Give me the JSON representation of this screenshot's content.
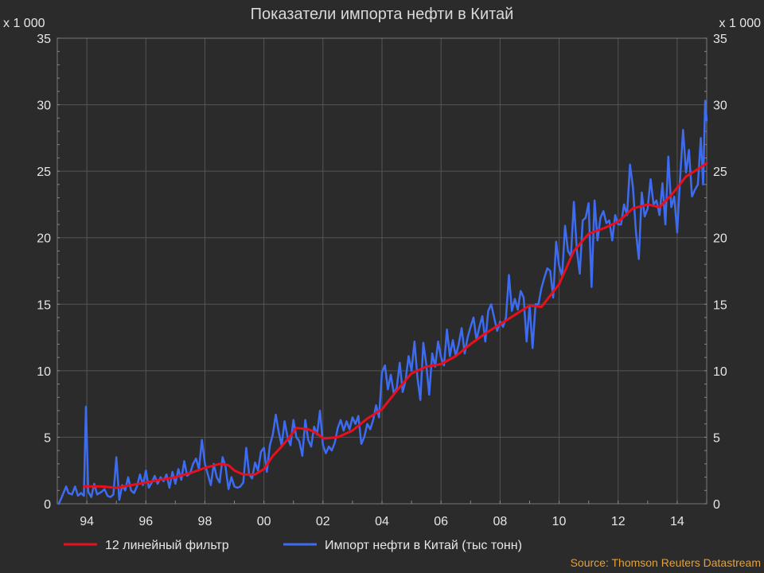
{
  "chart_data": {
    "type": "line",
    "title": "Показатели импорта нефти в Китай",
    "y_scale_label_left": "x 1 000",
    "y_scale_label_right": "x 1 000",
    "source": "Source: Thomson Reuters Datastream",
    "ylim": [
      0,
      35
    ],
    "xlim": [
      1993.0,
      2015.0
    ],
    "y_ticks": [
      0,
      5,
      10,
      15,
      20,
      25,
      30,
      35
    ],
    "x_tick_values": [
      1994,
      1996,
      1998,
      2000,
      2002,
      2004,
      2006,
      2008,
      2010,
      2012,
      2014
    ],
    "x_tick_labels": [
      "94",
      "96",
      "98",
      "00",
      "02",
      "04",
      "06",
      "08",
      "10",
      "12",
      "14"
    ],
    "grid": true,
    "legend_position": "bottom",
    "colors": {
      "background": "#2b2b2b",
      "grid": "#555555",
      "text": "#e6e6e6",
      "source": "#e8a030"
    },
    "series": [
      {
        "name": "12 линейный фильтр",
        "color": "#e8101e",
        "points": [
          [
            1993.9,
            1.3
          ],
          [
            1994.5,
            1.3
          ],
          [
            1995.0,
            1.2
          ],
          [
            1995.5,
            1.4
          ],
          [
            1996.0,
            1.6
          ],
          [
            1996.5,
            1.8
          ],
          [
            1997.0,
            2.0
          ],
          [
            1997.5,
            2.3
          ],
          [
            1998.0,
            2.7
          ],
          [
            1998.5,
            3.0
          ],
          [
            1998.8,
            2.9
          ],
          [
            1999.0,
            2.5
          ],
          [
            1999.3,
            2.2
          ],
          [
            1999.7,
            2.2
          ],
          [
            2000.0,
            2.6
          ],
          [
            2000.3,
            3.6
          ],
          [
            2000.6,
            4.3
          ],
          [
            2000.9,
            5.1
          ],
          [
            2001.1,
            5.7
          ],
          [
            2001.5,
            5.6
          ],
          [
            2001.8,
            5.3
          ],
          [
            2002.0,
            4.9
          ],
          [
            2002.5,
            5.0
          ],
          [
            2003.0,
            5.5
          ],
          [
            2003.5,
            6.4
          ],
          [
            2004.0,
            7.1
          ],
          [
            2004.5,
            8.5
          ],
          [
            2005.0,
            9.8
          ],
          [
            2005.5,
            10.3
          ],
          [
            2006.0,
            10.5
          ],
          [
            2006.5,
            11.1
          ],
          [
            2007.0,
            12.0
          ],
          [
            2007.5,
            12.8
          ],
          [
            2008.0,
            13.5
          ],
          [
            2008.5,
            14.2
          ],
          [
            2009.0,
            14.9
          ],
          [
            2009.4,
            14.8
          ],
          [
            2010.0,
            16.5
          ],
          [
            2010.5,
            19.0
          ],
          [
            2011.0,
            20.3
          ],
          [
            2011.5,
            20.7
          ],
          [
            2012.0,
            21.2
          ],
          [
            2012.5,
            22.2
          ],
          [
            2013.0,
            22.5
          ],
          [
            2013.4,
            22.3
          ],
          [
            2013.8,
            23.2
          ],
          [
            2014.3,
            24.6
          ],
          [
            2014.8,
            25.3
          ],
          [
            2015.0,
            25.6
          ]
        ]
      },
      {
        "name": "Импорт нефти в Китай (тыс тонн)",
        "color": "#3d6cf0",
        "points": [
          [
            1993.05,
            0.0
          ],
          [
            1993.15,
            0.5
          ],
          [
            1993.3,
            1.3
          ],
          [
            1993.38,
            0.8
          ],
          [
            1993.5,
            0.7
          ],
          [
            1993.6,
            1.3
          ],
          [
            1993.7,
            0.6
          ],
          [
            1993.8,
            0.8
          ],
          [
            1993.9,
            0.6
          ],
          [
            1993.97,
            7.3
          ],
          [
            1994.05,
            0.9
          ],
          [
            1994.15,
            0.5
          ],
          [
            1994.25,
            1.5
          ],
          [
            1994.35,
            0.7
          ],
          [
            1994.5,
            0.9
          ],
          [
            1994.6,
            1.1
          ],
          [
            1994.7,
            0.6
          ],
          [
            1994.8,
            0.5
          ],
          [
            1994.9,
            0.7
          ],
          [
            1995.0,
            3.5
          ],
          [
            1995.1,
            0.3
          ],
          [
            1995.2,
            1.4
          ],
          [
            1995.3,
            1.0
          ],
          [
            1995.4,
            2.0
          ],
          [
            1995.5,
            1.0
          ],
          [
            1995.6,
            0.8
          ],
          [
            1995.7,
            1.3
          ],
          [
            1995.8,
            2.2
          ],
          [
            1995.9,
            1.4
          ],
          [
            1996.0,
            2.5
          ],
          [
            1996.1,
            1.2
          ],
          [
            1996.2,
            1.6
          ],
          [
            1996.3,
            2.1
          ],
          [
            1996.4,
            1.5
          ],
          [
            1996.5,
            2.0
          ],
          [
            1996.6,
            1.7
          ],
          [
            1996.7,
            2.2
          ],
          [
            1996.8,
            1.2
          ],
          [
            1996.9,
            2.4
          ],
          [
            1997.0,
            1.5
          ],
          [
            1997.1,
            2.6
          ],
          [
            1997.2,
            1.8
          ],
          [
            1997.3,
            3.2
          ],
          [
            1997.4,
            2.1
          ],
          [
            1997.5,
            2.3
          ],
          [
            1997.6,
            3.0
          ],
          [
            1997.7,
            3.4
          ],
          [
            1997.8,
            2.6
          ],
          [
            1997.9,
            4.8
          ],
          [
            1998.0,
            3.0
          ],
          [
            1998.1,
            2.2
          ],
          [
            1998.2,
            1.4
          ],
          [
            1998.3,
            3.0
          ],
          [
            1998.4,
            2.0
          ],
          [
            1998.5,
            1.6
          ],
          [
            1998.6,
            3.5
          ],
          [
            1998.7,
            2.8
          ],
          [
            1998.8,
            1.1
          ],
          [
            1998.9,
            2.0
          ],
          [
            1999.0,
            1.3
          ],
          [
            1999.1,
            1.2
          ],
          [
            1999.2,
            1.3
          ],
          [
            1999.3,
            1.6
          ],
          [
            1999.4,
            4.2
          ],
          [
            1999.5,
            2.2
          ],
          [
            1999.6,
            1.9
          ],
          [
            1999.7,
            3.1
          ],
          [
            1999.8,
            2.5
          ],
          [
            1999.9,
            3.9
          ],
          [
            2000.0,
            4.2
          ],
          [
            2000.1,
            2.4
          ],
          [
            2000.2,
            4.4
          ],
          [
            2000.3,
            5.2
          ],
          [
            2000.4,
            6.7
          ],
          [
            2000.5,
            5.4
          ],
          [
            2000.6,
            4.4
          ],
          [
            2000.7,
            6.2
          ],
          [
            2000.8,
            5.0
          ],
          [
            2000.9,
            4.4
          ],
          [
            2001.0,
            6.3
          ],
          [
            2001.1,
            5.0
          ],
          [
            2001.2,
            4.7
          ],
          [
            2001.3,
            3.6
          ],
          [
            2001.4,
            6.3
          ],
          [
            2001.5,
            4.8
          ],
          [
            2001.6,
            4.3
          ],
          [
            2001.7,
            5.8
          ],
          [
            2001.8,
            5.2
          ],
          [
            2001.9,
            7.0
          ],
          [
            2002.0,
            4.4
          ],
          [
            2002.1,
            3.8
          ],
          [
            2002.2,
            4.3
          ],
          [
            2002.3,
            4.0
          ],
          [
            2002.4,
            4.6
          ],
          [
            2002.5,
            5.7
          ],
          [
            2002.6,
            6.3
          ],
          [
            2002.7,
            5.5
          ],
          [
            2002.8,
            6.2
          ],
          [
            2002.9,
            5.6
          ],
          [
            2003.0,
            6.5
          ],
          [
            2003.1,
            6.0
          ],
          [
            2003.2,
            6.6
          ],
          [
            2003.3,
            4.5
          ],
          [
            2003.4,
            5.0
          ],
          [
            2003.5,
            6.0
          ],
          [
            2003.6,
            5.6
          ],
          [
            2003.7,
            6.3
          ],
          [
            2003.8,
            7.4
          ],
          [
            2003.9,
            6.5
          ],
          [
            2004.0,
            9.9
          ],
          [
            2004.1,
            10.4
          ],
          [
            2004.2,
            8.6
          ],
          [
            2004.3,
            9.7
          ],
          [
            2004.4,
            8.3
          ],
          [
            2004.5,
            8.7
          ],
          [
            2004.6,
            10.6
          ],
          [
            2004.7,
            8.4
          ],
          [
            2004.8,
            9.3
          ],
          [
            2004.9,
            11.1
          ],
          [
            2005.0,
            10.0
          ],
          [
            2005.1,
            12.2
          ],
          [
            2005.2,
            9.5
          ],
          [
            2005.3,
            7.8
          ],
          [
            2005.4,
            12.1
          ],
          [
            2005.5,
            10.5
          ],
          [
            2005.6,
            8.2
          ],
          [
            2005.7,
            11.3
          ],
          [
            2005.8,
            10.3
          ],
          [
            2005.9,
            12.2
          ],
          [
            2006.0,
            11.0
          ],
          [
            2006.1,
            10.4
          ],
          [
            2006.2,
            13.1
          ],
          [
            2006.3,
            11.1
          ],
          [
            2006.4,
            12.3
          ],
          [
            2006.5,
            11.1
          ],
          [
            2006.6,
            12.0
          ],
          [
            2006.7,
            13.2
          ],
          [
            2006.8,
            11.3
          ],
          [
            2006.9,
            12.5
          ],
          [
            2007.0,
            13.3
          ],
          [
            2007.1,
            14.0
          ],
          [
            2007.2,
            12.3
          ],
          [
            2007.3,
            13.3
          ],
          [
            2007.4,
            14.1
          ],
          [
            2007.5,
            12.2
          ],
          [
            2007.6,
            14.5
          ],
          [
            2007.7,
            15.0
          ],
          [
            2007.8,
            14.0
          ],
          [
            2007.9,
            13.0
          ],
          [
            2008.0,
            13.7
          ],
          [
            2008.1,
            13.3
          ],
          [
            2008.2,
            14.0
          ],
          [
            2008.3,
            17.2
          ],
          [
            2008.4,
            14.5
          ],
          [
            2008.5,
            15.4
          ],
          [
            2008.6,
            14.6
          ],
          [
            2008.7,
            16.0
          ],
          [
            2008.8,
            15.5
          ],
          [
            2008.9,
            12.2
          ],
          [
            2009.0,
            14.9
          ],
          [
            2009.1,
            11.7
          ],
          [
            2009.2,
            15.0
          ],
          [
            2009.3,
            15.0
          ],
          [
            2009.4,
            16.2
          ],
          [
            2009.5,
            17.0
          ],
          [
            2009.6,
            17.7
          ],
          [
            2009.7,
            17.5
          ],
          [
            2009.8,
            15.5
          ],
          [
            2009.9,
            19.7
          ],
          [
            2010.0,
            17.9
          ],
          [
            2010.1,
            17.1
          ],
          [
            2010.2,
            20.9
          ],
          [
            2010.3,
            19.0
          ],
          [
            2010.4,
            18.6
          ],
          [
            2010.5,
            22.7
          ],
          [
            2010.6,
            19.1
          ],
          [
            2010.7,
            17.3
          ],
          [
            2010.8,
            21.3
          ],
          [
            2010.9,
            21.5
          ],
          [
            2011.0,
            22.6
          ],
          [
            2011.1,
            16.3
          ],
          [
            2011.2,
            22.8
          ],
          [
            2011.3,
            19.8
          ],
          [
            2011.4,
            21.5
          ],
          [
            2011.5,
            22.0
          ],
          [
            2011.6,
            21.1
          ],
          [
            2011.7,
            21.3
          ],
          [
            2011.8,
            19.8
          ],
          [
            2011.9,
            21.7
          ],
          [
            2012.0,
            21.0
          ],
          [
            2012.1,
            21.0
          ],
          [
            2012.2,
            22.5
          ],
          [
            2012.3,
            21.7
          ],
          [
            2012.4,
            25.5
          ],
          [
            2012.5,
            23.8
          ],
          [
            2012.6,
            20.5
          ],
          [
            2012.7,
            18.4
          ],
          [
            2012.8,
            23.4
          ],
          [
            2012.9,
            21.6
          ],
          [
            2013.0,
            22.2
          ],
          [
            2013.1,
            24.4
          ],
          [
            2013.2,
            22.5
          ],
          [
            2013.3,
            22.8
          ],
          [
            2013.4,
            21.7
          ],
          [
            2013.5,
            24.1
          ],
          [
            2013.6,
            21.0
          ],
          [
            2013.7,
            26.1
          ],
          [
            2013.8,
            22.3
          ],
          [
            2013.9,
            23.1
          ],
          [
            2014.0,
            20.4
          ],
          [
            2014.1,
            24.5
          ],
          [
            2014.2,
            28.1
          ],
          [
            2014.3,
            24.9
          ],
          [
            2014.4,
            26.6
          ],
          [
            2014.5,
            23.1
          ],
          [
            2014.6,
            23.6
          ],
          [
            2014.7,
            24.0
          ],
          [
            2014.8,
            27.5
          ],
          [
            2014.88,
            24.0
          ],
          [
            2014.95,
            30.3
          ],
          [
            2015.0,
            28.8
          ]
        ]
      }
    ]
  }
}
